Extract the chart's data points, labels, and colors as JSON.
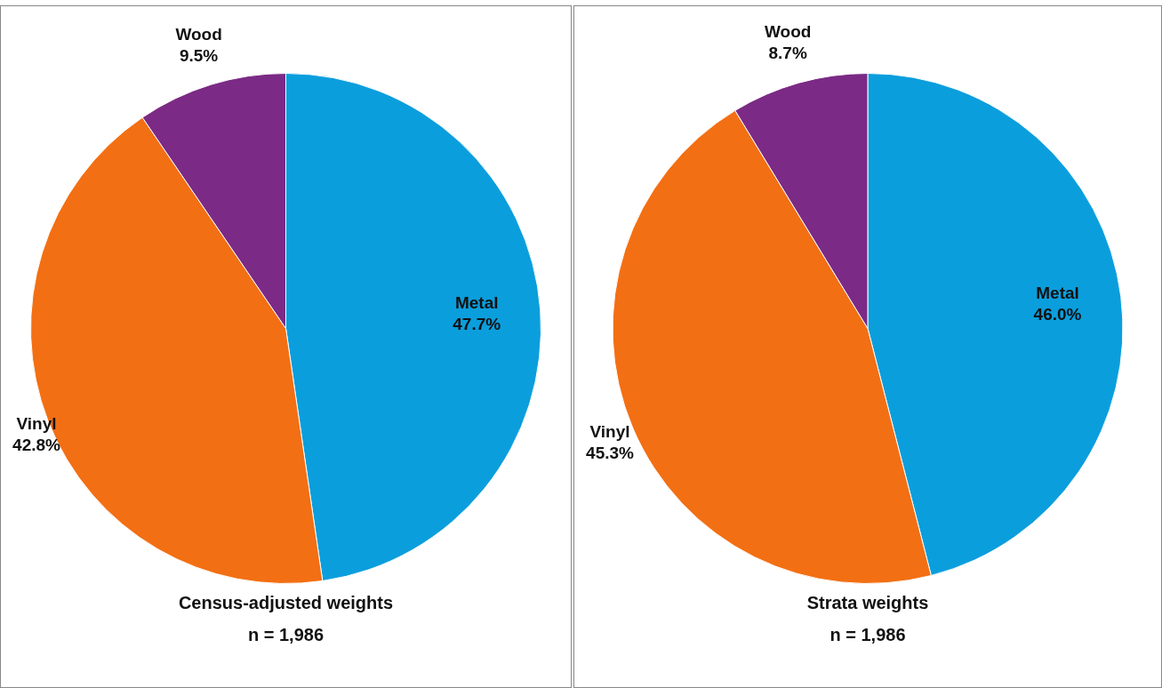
{
  "chart_data": [
    {
      "type": "pie",
      "title": "Census-adjusted weights",
      "subtitle": "n = 1,986",
      "categories": [
        "Metal",
        "Vinyl",
        "Wood"
      ],
      "values": [
        47.7,
        42.8,
        9.5
      ],
      "colors": [
        "#0b9edd",
        "#f36f13",
        "#7b2a85"
      ],
      "value_labels": [
        "47.7%",
        "42.8%",
        "9.5%"
      ],
      "legend": false
    },
    {
      "type": "pie",
      "title": "Strata weights",
      "subtitle": "n = 1,986",
      "categories": [
        "Metal",
        "Vinyl",
        "Wood"
      ],
      "values": [
        46.0,
        45.3,
        8.7
      ],
      "colors": [
        "#0b9edd",
        "#f36f13",
        "#7b2a85"
      ],
      "value_labels": [
        "46.0%",
        "45.3%",
        "8.7%"
      ],
      "legend": false
    }
  ]
}
